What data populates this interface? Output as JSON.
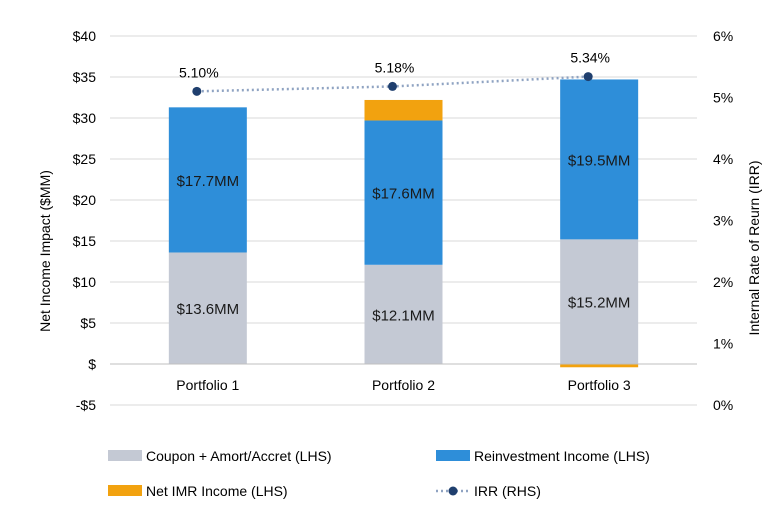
{
  "chart_data": {
    "type": "bar",
    "stacked": true,
    "categories": [
      "Portfolio 1",
      "Portfolio 2",
      "Portfolio 3"
    ],
    "series": [
      {
        "name": "Coupon + Amort/Accret (LHS)",
        "values": [
          13.6,
          12.1,
          15.2
        ],
        "color": "#C4C9D4",
        "labels": [
          "$13.6MM",
          "$12.1MM",
          "$15.2MM"
        ]
      },
      {
        "name": "Reinvestment Income (LHS)",
        "values": [
          17.7,
          17.6,
          19.5
        ],
        "color": "#2E8ED9",
        "labels": [
          "$17.7MM",
          "$17.6MM",
          "$19.5MM"
        ]
      },
      {
        "name": "Net IMR Income (LHS)",
        "values": [
          0.0,
          2.5,
          -0.4
        ],
        "color": "#F2A20F"
      }
    ],
    "line_series": {
      "name": "IRR (RHS)",
      "values": [
        5.1,
        5.18,
        5.34
      ],
      "labels": [
        "5.10%",
        "5.18%",
        "5.34%"
      ],
      "color": "#1F3F6E",
      "line_color": "#8FA3C2",
      "axis": "right"
    },
    "ylabel": "Net Income Impact ($MM)",
    "y2label": "Internal Rate of Reurn (IRR)",
    "ylim": [
      -5,
      40
    ],
    "y_ticks": [
      40,
      35,
      30,
      25,
      20,
      15,
      10,
      5,
      0,
      -5
    ],
    "y_tick_labels": [
      "$40",
      "$35",
      "$30",
      "$25",
      "$20",
      "$15",
      "$10",
      "$5",
      "$",
      "-$5"
    ],
    "y2lim": [
      0,
      6
    ],
    "y2_ticks": [
      6,
      5,
      4,
      3,
      2,
      1,
      0
    ],
    "y2_tick_labels": [
      "6%",
      "5%",
      "4%",
      "3%",
      "2%",
      "1%",
      "0%"
    ],
    "grid": "horizontal",
    "legend_position": "bottom"
  }
}
